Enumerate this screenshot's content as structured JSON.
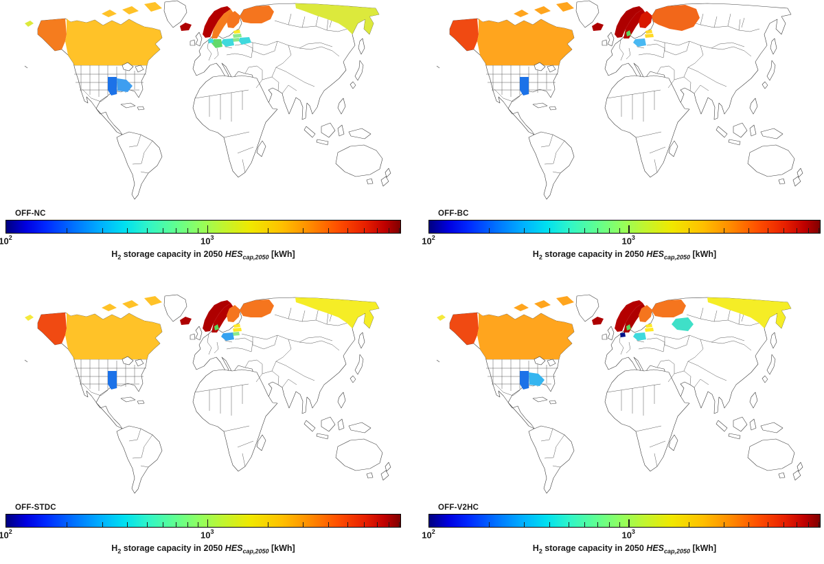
{
  "ui": {
    "caption": {
      "h": "H",
      "h_sub": "2",
      "text": " storage capacity in 2050 ",
      "var": "HES",
      "var_sub": "cap,2050",
      "unit": " [kWh]"
    },
    "colorbar": {
      "tick_low_base": "10",
      "tick_low_exp": "2",
      "tick_mid_base": "10",
      "tick_mid_exp": "3",
      "gradient_css": "linear-gradient(90deg,#00007F 0%,#0000E0 5%,#0028FF 10%,#0070FF 17%,#00B0FF 24%,#00E0F0 30%,#30F5C8 36%,#60FF90 43%,#90FF60 49%,#C0F530 55%,#F0E800 62%,#FFC000 70%,#FF8C00 77%,#FF5000 84%,#E82000 91%,#C00000 96%,#800000 100%",
      "major_ticks": [
        0.51
      ],
      "minor_ticks": [
        0.1535,
        0.2433,
        0.307,
        0.3565,
        0.3968,
        0.431,
        0.4605,
        0.4866,
        0.6635,
        0.7533,
        0.817,
        0.8665,
        0.9068,
        0.941,
        0.9705,
        0.9966
      ]
    }
  },
  "chart_data": {
    "type": "choropleth",
    "subtype": "world-map-grid-2x2",
    "colormap": "jet",
    "scale": "log10",
    "axis": {
      "min_kWh": 100,
      "mid_tick_kWh": 1000,
      "max_kWh": 9000,
      "tick_labels": [
        "10^2",
        "10^3"
      ]
    },
    "colorbar_label": "H2 storage capacity in 2050 HES_cap,2050 [kWh]",
    "panels": [
      {
        "label": "OFF-NC",
        "regions": {
          "alaska": {
            "color": "#F57C1E",
            "approx_kWh": 3200
          },
          "canada": {
            "color": "#FFC228",
            "approx_kWh": 2300
          },
          "aleutian": {
            "color": "#DCE93C",
            "approx_kWh": 1200
          },
          "us_mississippi": {
            "color": "#1C72E8",
            "approx_kWh": 180
          },
          "us_georgia": {
            "color": "#3E9EF0",
            "approx_kWh": 280
          },
          "iceland": {
            "color": "#AE0000",
            "approx_kWh": 8000
          },
          "norway": {
            "color": "#B40000",
            "approx_kWh": 7800
          },
          "sweden": {
            "color": "#F57C1E",
            "approx_kWh": 3200
          },
          "finland": {
            "color": "#F5751E",
            "approx_kWh": 3200
          },
          "nw_russia": {
            "color": "#F5751E",
            "approx_kWh": 3200
          },
          "fareast_russia": {
            "color": "#DCE93C",
            "approx_kWh": 1200
          },
          "estonia": {
            "color": "#FFE926",
            "approx_kWh": 1600
          },
          "latvia": {
            "color": "#8CE98C",
            "approx_kWh": 760
          },
          "lithuania": {
            "color": "#8CE98C",
            "approx_kWh": 760
          },
          "belarus": {
            "color": "#3FD9DD",
            "approx_kWh": 400
          },
          "poland": {
            "color": "#3FD9DD",
            "approx_kWh": 400
          },
          "germany": {
            "color": "#62D96A",
            "approx_kWh": 650
          },
          "lowcountries": {
            "color": "#3FD9DD",
            "approx_kWh": 400
          }
        }
      },
      {
        "label": "OFF-BC",
        "regions": {
          "alaska": {
            "color": "#F04A12",
            "approx_kWh": 4600
          },
          "canada": {
            "color": "#FFA51E",
            "approx_kWh": 2600
          },
          "us_mississippi": {
            "color": "#1C72E8",
            "approx_kWh": 180
          },
          "iceland": {
            "color": "#AE0000",
            "approx_kWh": 8000
          },
          "norway": {
            "color": "#AE0000",
            "approx_kWh": 8000
          },
          "sweden": {
            "color": "#B40000",
            "approx_kWh": 7500
          },
          "finland": {
            "color": "#D81800",
            "approx_kWh": 6000
          },
          "nw_russia_big": {
            "color": "#F2671A",
            "approx_kWh": 3600
          },
          "estonia": {
            "color": "#FFD926",
            "approx_kWh": 1500
          },
          "latvia": {
            "color": "#FFD926",
            "approx_kWh": 1500
          },
          "poland": {
            "color": "#49B8F2",
            "approx_kWh": 300
          },
          "denmark": {
            "color": "#5BD65B",
            "approx_kWh": 650
          }
        }
      },
      {
        "label": "OFF-STDC",
        "regions": {
          "alaska": {
            "color": "#F04A12",
            "approx_kWh": 4600
          },
          "canada": {
            "color": "#FFC228",
            "approx_kWh": 2300
          },
          "aleutian": {
            "color": "#F5E93C",
            "approx_kWh": 1400
          },
          "us_mississippi": {
            "color": "#1C72E8",
            "approx_kWh": 180
          },
          "iceland": {
            "color": "#AE0000",
            "approx_kWh": 8000
          },
          "norway": {
            "color": "#AE0000",
            "approx_kWh": 8000
          },
          "sweden": {
            "color": "#B40000",
            "approx_kWh": 7500
          },
          "finland": {
            "color": "#F5751E",
            "approx_kWh": 3200
          },
          "nw_russia": {
            "color": "#F5751E",
            "approx_kWh": 3200
          },
          "fareast_russia": {
            "color": "#F5ED26",
            "approx_kWh": 1500
          },
          "estonia": {
            "color": "#FFE926",
            "approx_kWh": 1600
          },
          "latvia": {
            "color": "#FFE926",
            "approx_kWh": 1600
          },
          "lithuania": {
            "color": "#8CE98C",
            "approx_kWh": 760
          },
          "poland": {
            "color": "#35A2F0",
            "approx_kWh": 290
          },
          "denmark": {
            "color": "#5BD65B",
            "approx_kWh": 650
          }
        }
      },
      {
        "label": "OFF-V2HC",
        "regions": {
          "alaska": {
            "color": "#F04A12",
            "approx_kWh": 4600
          },
          "canada": {
            "color": "#FFA51E",
            "approx_kWh": 2600
          },
          "aleutian": {
            "color": "#F5E93C",
            "approx_kWh": 1400
          },
          "us_mississippi": {
            "color": "#1C72E8",
            "approx_kWh": 180
          },
          "us_georgia": {
            "color": "#35B5F0",
            "approx_kWh": 330
          },
          "iceland": {
            "color": "#AE0000",
            "approx_kWh": 8000
          },
          "norway": {
            "color": "#B40000",
            "approx_kWh": 7800
          },
          "sweden": {
            "color": "#AE0000",
            "approx_kWh": 8000
          },
          "finland": {
            "color": "#F5751E",
            "approx_kWh": 3200
          },
          "nw_russia": {
            "color": "#F5751E",
            "approx_kWh": 3200
          },
          "fareast_russia": {
            "color": "#F5ED26",
            "approx_kWh": 1500
          },
          "estonia": {
            "color": "#FFE926",
            "approx_kWh": 1600
          },
          "latvia": {
            "color": "#FFE926",
            "approx_kWh": 1600
          },
          "poland": {
            "color": "#3FD9DD",
            "approx_kWh": 400
          },
          "central_russia": {
            "color": "#3FE0C8",
            "approx_kWh": 440
          },
          "lowcountries": {
            "color": "#001289",
            "approx_kWh": 105
          },
          "denmark": {
            "color": "#5BD65B",
            "approx_kWh": 650
          }
        }
      }
    ]
  }
}
